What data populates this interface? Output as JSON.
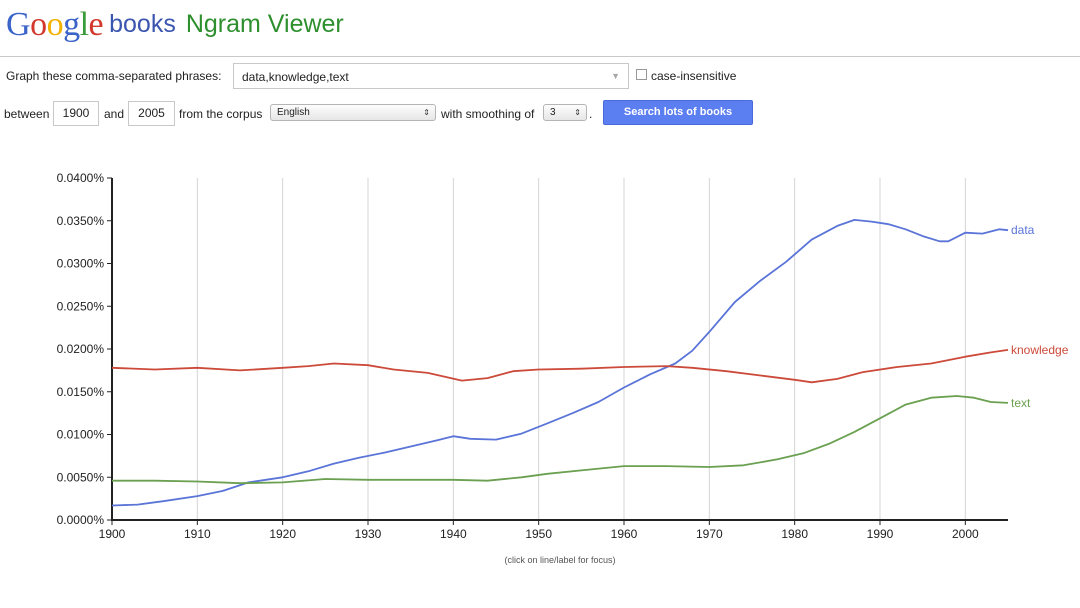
{
  "header": {
    "logo_text": "Google",
    "books_label": "books",
    "app_title": "Ngram Viewer"
  },
  "form": {
    "phrases_label": "Graph these comma-separated phrases:",
    "phrases_value": "data,knowledge,text",
    "case_insensitive_label": "case-insensitive",
    "between_label": "between",
    "start_year": "1900",
    "and_label": "and",
    "end_year": "2005",
    "corpus_label": "from the corpus",
    "corpus_value": "English",
    "smoothing_label": "with smoothing of",
    "smoothing_value": "3",
    "period": ".",
    "search_button_label": "Search lots of books"
  },
  "caption": "(click on line/label for focus)",
  "chart_data": {
    "type": "line",
    "title": "",
    "xlabel": "",
    "ylabel": "",
    "xlim": [
      1900,
      2005
    ],
    "ylim": [
      0,
      0.04
    ],
    "x_ticks": [
      1900,
      1910,
      1920,
      1930,
      1940,
      1950,
      1960,
      1970,
      1980,
      1990,
      2000
    ],
    "y_ticks": [
      0.0,
      0.005,
      0.01,
      0.015,
      0.02,
      0.025,
      0.03,
      0.035,
      0.04
    ],
    "y_tick_labels": [
      "0.0000%",
      "0.0050%",
      "0.0100%",
      "0.0150%",
      "0.0200%",
      "0.0250%",
      "0.0300%",
      "0.0350%",
      "0.0400%"
    ],
    "grid": "vertical",
    "legend": "line-end labels",
    "series": [
      {
        "name": "data",
        "color": "#5a74d8",
        "points": [
          [
            1900,
            0.0017
          ],
          [
            1903,
            0.0018
          ],
          [
            1906,
            0.0022
          ],
          [
            1910,
            0.0028
          ],
          [
            1913,
            0.0034
          ],
          [
            1916,
            0.0044
          ],
          [
            1920,
            0.005
          ],
          [
            1923,
            0.0057
          ],
          [
            1926,
            0.0066
          ],
          [
            1929,
            0.0073
          ],
          [
            1932,
            0.0079
          ],
          [
            1935,
            0.0086
          ],
          [
            1938,
            0.0093
          ],
          [
            1940,
            0.0098
          ],
          [
            1942,
            0.0095
          ],
          [
            1945,
            0.0094
          ],
          [
            1948,
            0.0101
          ],
          [
            1951,
            0.0113
          ],
          [
            1954,
            0.0125
          ],
          [
            1957,
            0.0138
          ],
          [
            1960,
            0.0155
          ],
          [
            1963,
            0.017
          ],
          [
            1966,
            0.0183
          ],
          [
            1968,
            0.0198
          ],
          [
            1970,
            0.022
          ],
          [
            1973,
            0.0255
          ],
          [
            1976,
            0.028
          ],
          [
            1979,
            0.0302
          ],
          [
            1982,
            0.0328
          ],
          [
            1985,
            0.0344
          ],
          [
            1987,
            0.0351
          ],
          [
            1989,
            0.0349
          ],
          [
            1991,
            0.0346
          ],
          [
            1993,
            0.034
          ],
          [
            1995,
            0.0332
          ],
          [
            1997,
            0.0326
          ],
          [
            1998,
            0.0326
          ],
          [
            2000,
            0.0336
          ],
          [
            2002,
            0.0335
          ],
          [
            2004,
            0.034
          ],
          [
            2005,
            0.0339
          ]
        ]
      },
      {
        "name": "knowledge",
        "color": "#cc4a3a",
        "points": [
          [
            1900,
            0.0178
          ],
          [
            1905,
            0.0176
          ],
          [
            1910,
            0.0178
          ],
          [
            1915,
            0.0175
          ],
          [
            1920,
            0.0178
          ],
          [
            1923,
            0.018
          ],
          [
            1926,
            0.0183
          ],
          [
            1930,
            0.0181
          ],
          [
            1933,
            0.0176
          ],
          [
            1937,
            0.0172
          ],
          [
            1941,
            0.0163
          ],
          [
            1944,
            0.0166
          ],
          [
            1947,
            0.0174
          ],
          [
            1950,
            0.0176
          ],
          [
            1955,
            0.0177
          ],
          [
            1960,
            0.0179
          ],
          [
            1965,
            0.018
          ],
          [
            1968,
            0.0178
          ],
          [
            1972,
            0.0174
          ],
          [
            1976,
            0.0169
          ],
          [
            1980,
            0.0164
          ],
          [
            1982,
            0.0161
          ],
          [
            1985,
            0.0165
          ],
          [
            1988,
            0.0173
          ],
          [
            1992,
            0.0179
          ],
          [
            1996,
            0.0183
          ],
          [
            2000,
            0.0191
          ],
          [
            2003,
            0.0196
          ],
          [
            2005,
            0.0199
          ]
        ]
      },
      {
        "name": "text",
        "color": "#6aa050",
        "points": [
          [
            1900,
            0.0046
          ],
          [
            1905,
            0.0046
          ],
          [
            1910,
            0.0045
          ],
          [
            1915,
            0.0043
          ],
          [
            1920,
            0.0044
          ],
          [
            1925,
            0.0048
          ],
          [
            1930,
            0.0047
          ],
          [
            1935,
            0.0047
          ],
          [
            1940,
            0.0047
          ],
          [
            1944,
            0.0046
          ],
          [
            1948,
            0.005
          ],
          [
            1951,
            0.0054
          ],
          [
            1955,
            0.0058
          ],
          [
            1960,
            0.0063
          ],
          [
            1965,
            0.0063
          ],
          [
            1970,
            0.0062
          ],
          [
            1974,
            0.0064
          ],
          [
            1978,
            0.0071
          ],
          [
            1981,
            0.0078
          ],
          [
            1984,
            0.0089
          ],
          [
            1987,
            0.0103
          ],
          [
            1990,
            0.0119
          ],
          [
            1993,
            0.0135
          ],
          [
            1996,
            0.0143
          ],
          [
            1999,
            0.0145
          ],
          [
            2001,
            0.0143
          ],
          [
            2003,
            0.0138
          ],
          [
            2005,
            0.0137
          ]
        ]
      }
    ]
  }
}
